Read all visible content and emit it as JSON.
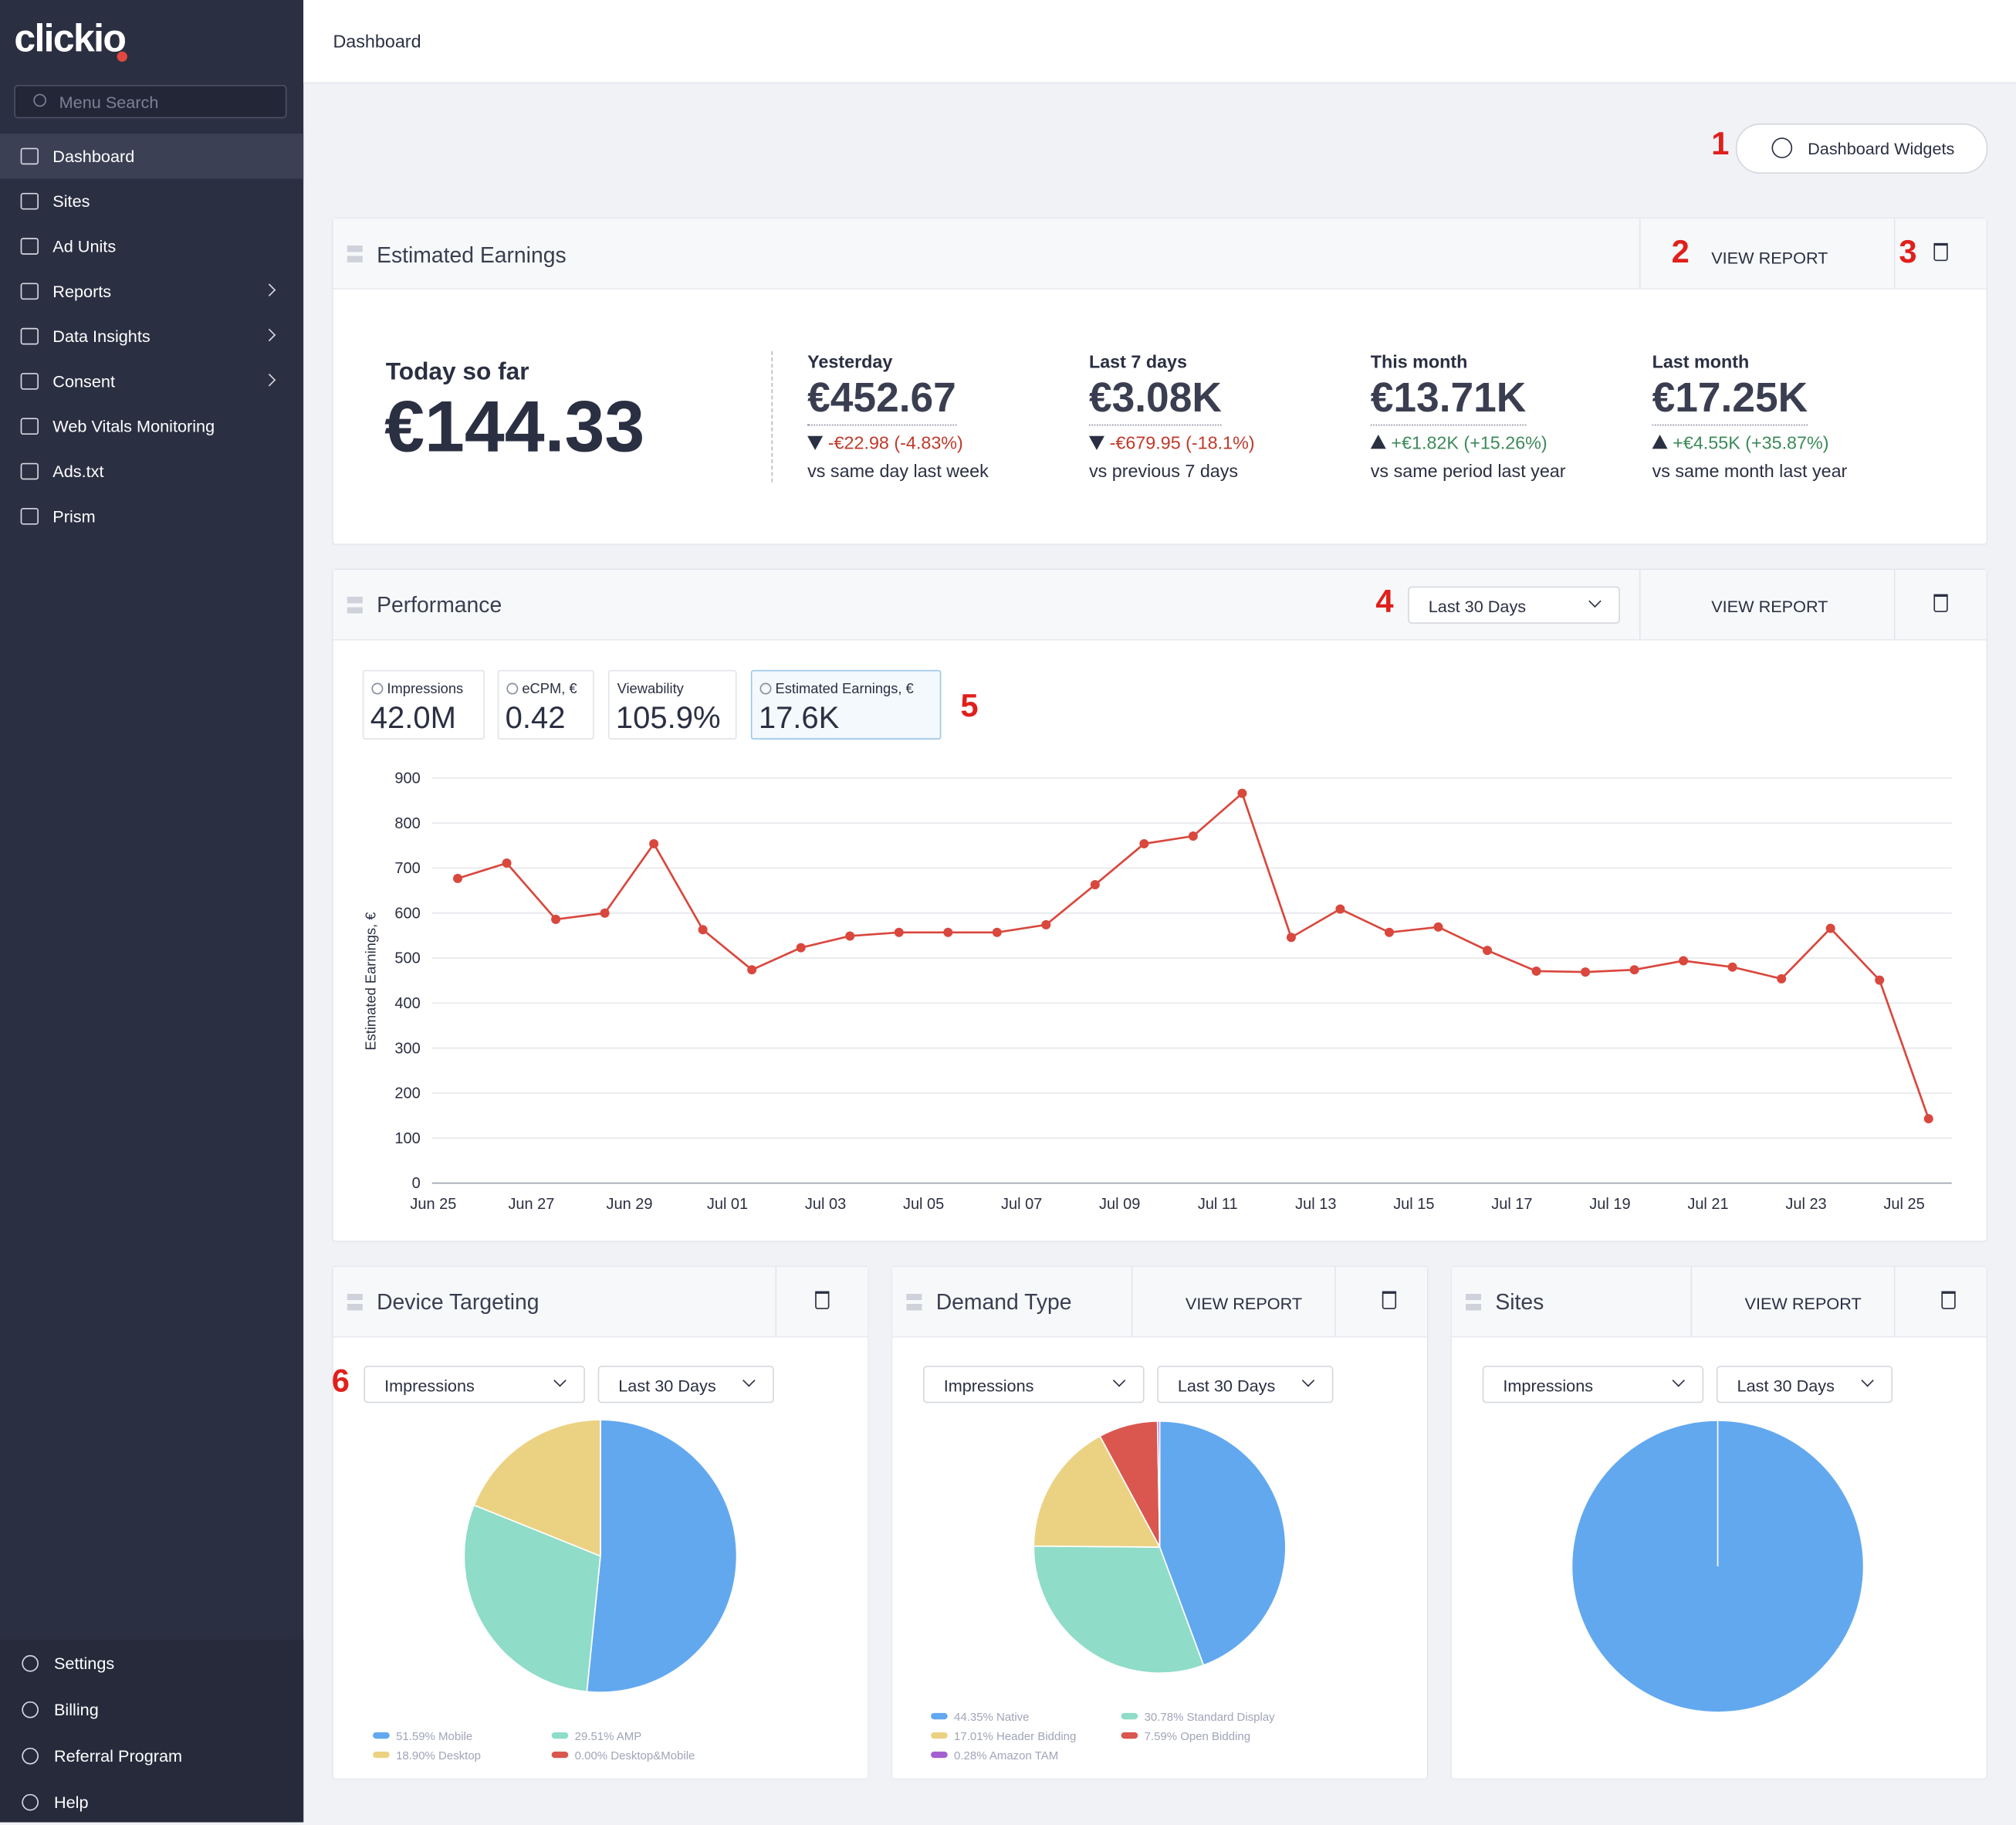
{
  "logo": "clickio",
  "search_placeholder": "Menu Search",
  "menu": [
    "Dashboard",
    "Sites",
    "Ad Units",
    "Reports",
    "Data Insights",
    "Consent",
    "Web Vitals Monitoring",
    "Ads.txt",
    "Prism"
  ],
  "menu_bottom": [
    "Settings",
    "Billing",
    "Referral Program",
    "Help"
  ],
  "header": {
    "title": "Dashboard"
  },
  "dashboard_widgets_button": "Dashboard Widgets",
  "annotations": [
    "1",
    "2",
    "3",
    "4",
    "5",
    "6"
  ],
  "earnings": {
    "title": "Estimated Earnings",
    "view_report": "VIEW REPORT",
    "today": {
      "label": "Today so far",
      "value": "€144.33"
    },
    "stats": [
      {
        "label": "Yesterday",
        "value": "€452.67",
        "change": "-€22.98 (-4.83%)",
        "direction": "down",
        "note": "vs same day last week"
      },
      {
        "label": "Last 7 days",
        "value": "€3.08K",
        "change": "-€679.95 (-18.1%)",
        "direction": "down",
        "note": "vs previous 7 days"
      },
      {
        "label": "This month",
        "value": "€13.71K",
        "change": "+€1.82K (+15.26%)",
        "direction": "up",
        "note": "vs same period last year"
      },
      {
        "label": "Last month",
        "value": "€17.25K",
        "change": "+€4.55K (+35.87%)",
        "direction": "up",
        "note": "vs same month last year"
      }
    ]
  },
  "performance": {
    "title": "Performance",
    "range": "Last 30 Days",
    "view_report": "VIEW REPORT",
    "metrics": [
      {
        "label": "Impressions",
        "value": "42.0M"
      },
      {
        "label": "eCPM, €",
        "value": "0.42"
      },
      {
        "label": "Viewability",
        "value": "105.9%"
      },
      {
        "label": "Estimated Earnings, €",
        "value": "17.6K"
      }
    ]
  },
  "widgets": [
    {
      "title": "Device Targeting",
      "metric": "Impressions",
      "range": "Last 30 Days"
    },
    {
      "title": "Demand Type",
      "view_report": "VIEW REPORT",
      "metric": "Impressions",
      "range": "Last 30 Days"
    },
    {
      "title": "Sites",
      "view_report": "VIEW REPORT",
      "metric": "Impressions",
      "range": "Last 30 Days"
    }
  ],
  "chart_data": [
    {
      "type": "line",
      "ylabel": "Estimated Earnings, €",
      "color": "#d9473d",
      "categories": [
        "Jun 25",
        null,
        "Jun 27",
        null,
        "Jun 29",
        null,
        "Jul 01",
        null,
        "Jul 03",
        null,
        "Jul 05",
        null,
        "Jul 07",
        null,
        "Jul 09",
        null,
        "Jul 11",
        null,
        "Jul 13",
        null,
        "Jul 15",
        null,
        "Jul 17",
        null,
        "Jul 19",
        null,
        "Jul 21",
        null,
        "Jul 23",
        null,
        "Jul 25"
      ],
      "values": [
        677,
        711,
        586,
        600,
        754,
        563,
        474,
        523,
        549,
        557,
        557,
        557,
        574,
        663,
        754,
        771,
        866,
        546,
        609,
        557,
        569,
        517,
        471,
        469,
        474,
        494,
        480,
        454,
        566,
        451,
        143
      ],
      "ylim": [
        0,
        900
      ],
      "yticks": [
        0,
        100,
        200,
        300,
        400,
        500,
        600,
        700,
        800,
        900
      ],
      "grid": true
    },
    {
      "type": "pie",
      "values": [
        51.59,
        29.51,
        18.9,
        0
      ],
      "value_labels": [
        "51.59% Mobile",
        "29.51% AMP",
        "18.90% Desktop",
        "0.00% Desktop&Mobile"
      ],
      "colors": [
        "#62a8ef",
        "#8fdcc8",
        "#ebd283",
        "#d9574f"
      ]
    },
    {
      "type": "pie",
      "values": [
        44.35,
        30.78,
        17.01,
        7.59,
        0.28
      ],
      "value_labels": [
        "44.35% Native",
        "30.78% Standard Display",
        "17.01% Header Bidding",
        "7.59% Open Bidding",
        "0.28% Amazon TAM"
      ],
      "colors": [
        "#62a8ef",
        "#8fdcc8",
        "#ebd283",
        "#d9574f",
        "#a45fd0"
      ]
    },
    {
      "type": "pie",
      "values": [
        100
      ],
      "colors": [
        "#62a8ef"
      ]
    }
  ]
}
